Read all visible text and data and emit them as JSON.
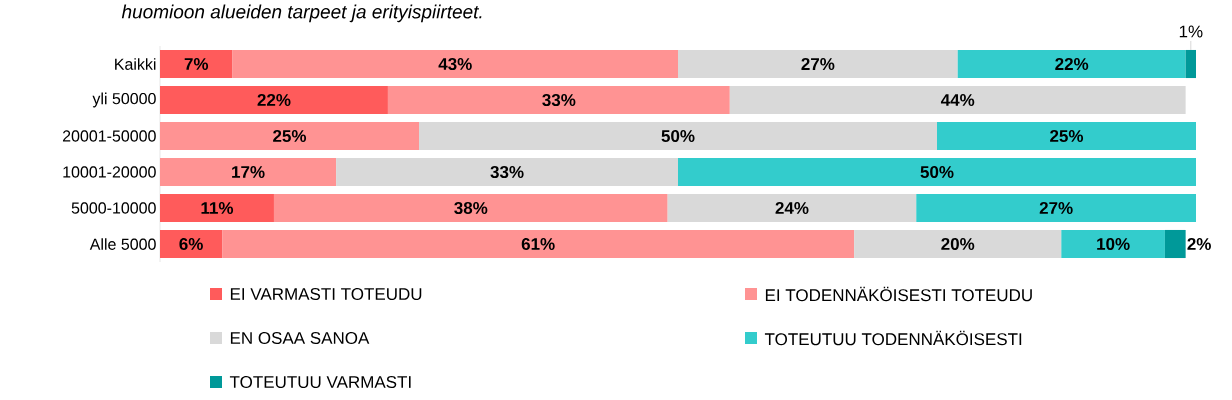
{
  "chart_data": {
    "type": "bar",
    "orientation": "horizontal",
    "stacked": true,
    "title": "huomioon alueiden tarpeet ja erityispiirteet.",
    "categories": [
      "Kaikki",
      "yli 50000",
      "20001-50000",
      "10001-20000",
      "5000-10000",
      "Alle 5000"
    ],
    "series": [
      {
        "name": "EI VARMASTI TOTEUDU",
        "color": "#ff5b5b",
        "values": [
          7,
          22,
          null,
          null,
          11,
          6
        ],
        "value_labels": [
          "7%",
          "22%",
          null,
          null,
          "11%",
          "6%"
        ]
      },
      {
        "name": "EI TODENNÄKÖISESTI TOTEUDU",
        "color": "#ff9393",
        "values": [
          43,
          33,
          25,
          17,
          38,
          61
        ],
        "value_labels": [
          "43%",
          "33%",
          "25%",
          "17%",
          "38%",
          "61%"
        ]
      },
      {
        "name": "EN OSAA SANOA",
        "color": "#d9d9d9",
        "values": [
          27,
          44,
          50,
          33,
          24,
          20
        ],
        "value_labels": [
          "27%",
          "44%",
          "50%",
          "33%",
          "24%",
          "20%"
        ]
      },
      {
        "name": "TOTEUTUU TODENNÄKÖISESTI",
        "color": "#33cccc",
        "values": [
          22,
          null,
          25,
          50,
          27,
          10
        ],
        "value_labels": [
          "22%",
          null,
          "25%",
          "50%",
          "27%",
          "10%"
        ]
      },
      {
        "name": "TOTEUTUU VARMASTI",
        "color": "#009999",
        "values": [
          1,
          null,
          null,
          null,
          null,
          2
        ],
        "value_labels": [
          "1%",
          null,
          null,
          null,
          null,
          "2%"
        ]
      }
    ],
    "legend": "bottom"
  }
}
